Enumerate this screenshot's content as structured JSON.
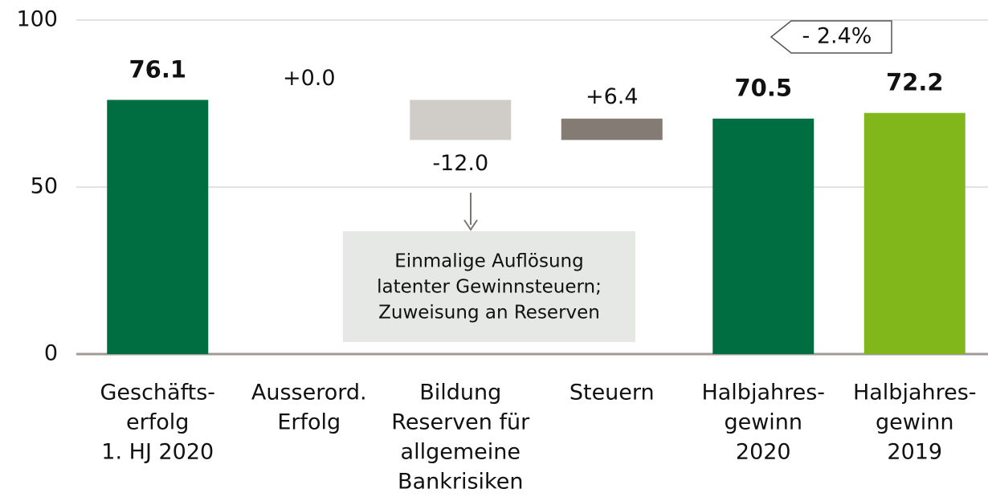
{
  "chart_data": {
    "type": "waterfall",
    "categories": [
      [
        "Geschäfts-",
        "erfolg",
        "1. HJ 2020"
      ],
      [
        "Ausserord.",
        "Erfolg"
      ],
      [
        "Bildung",
        "Reserven für",
        "allgemeine",
        "Bankrisiken"
      ],
      [
        "Steuern"
      ],
      [
        "Halbjahres-",
        "gewinn",
        "2020"
      ],
      [
        "Halbjahres-",
        "gewinn",
        "2019"
      ]
    ],
    "values": [
      76.1,
      0.0,
      -12.0,
      6.4,
      70.5,
      72.2
    ],
    "value_labels": [
      "76.1",
      "+0.0",
      "-12.0",
      "+6.4",
      "70.5",
      "72.2"
    ],
    "kinds": [
      "total",
      "delta",
      "delta",
      "delta",
      "total",
      "total"
    ],
    "colors": [
      "#006e40",
      "#857b75",
      "#d0cdc8",
      "#857b75",
      "#006e40",
      "#82b71c"
    ],
    "ylim": [
      0,
      100
    ],
    "yticks": [
      0,
      50,
      100
    ],
    "grid": true,
    "annotation": [
      "Einmalige Auflösung",
      "latenter Gewinnsteuern;",
      "Zuweisung an Reserven"
    ],
    "callout": "- 2.4%"
  }
}
